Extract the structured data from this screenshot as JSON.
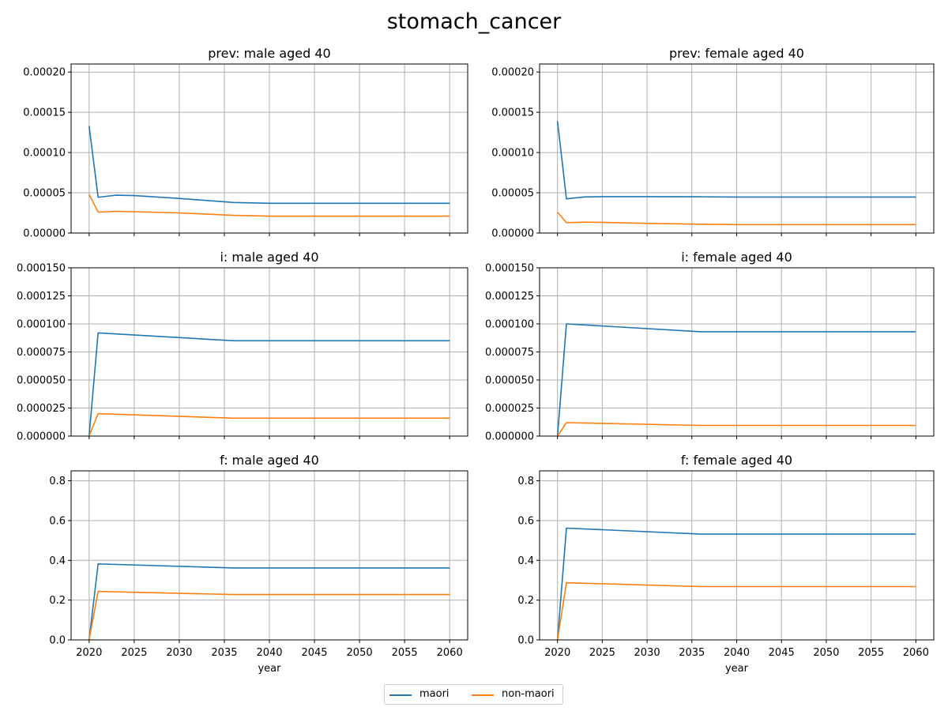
{
  "figure": {
    "title": "stomach_cancer"
  },
  "legend": {
    "items": [
      {
        "label": "maori",
        "color": "#1f77b4"
      },
      {
        "label": "non-maori",
        "color": "#ff7f0e"
      }
    ]
  },
  "chart_data": [
    {
      "type": "line",
      "title": "prev: male aged 40",
      "xlabel": "",
      "ylabel": "",
      "xlim": [
        2018,
        2062
      ],
      "ylim": [
        0,
        0.00021
      ],
      "yticks": [
        "0.00000",
        "0.00005",
        "0.00010",
        "0.00015",
        "0.00020"
      ],
      "ytick_values": [
        0,
        5e-05,
        0.0001,
        0.00015,
        0.0002
      ],
      "xticks": [
        2020,
        2025,
        2030,
        2035,
        2040,
        2045,
        2050,
        2055,
        2060
      ],
      "show_xticklabels": false,
      "grid": true,
      "series": [
        {
          "name": "maori",
          "color": "#1f77b4",
          "x": [
            2020,
            2021,
            2023,
            2025,
            2030,
            2036,
            2040,
            2060
          ],
          "y": [
            0.000133,
            4.45e-05,
            4.7e-05,
            4.65e-05,
            4.3e-05,
            3.8e-05,
            3.7e-05,
            3.7e-05
          ]
        },
        {
          "name": "non-maori",
          "color": "#ff7f0e",
          "x": [
            2020,
            2021,
            2023,
            2025,
            2030,
            2036,
            2040,
            2060
          ],
          "y": [
            4.8e-05,
            2.6e-05,
            2.7e-05,
            2.65e-05,
            2.5e-05,
            2.2e-05,
            2.1e-05,
            2.1e-05
          ]
        }
      ]
    },
    {
      "type": "line",
      "title": "prev: female aged 40",
      "xlabel": "",
      "ylabel": "",
      "xlim": [
        2018,
        2062
      ],
      "ylim": [
        0,
        0.00021
      ],
      "yticks": [
        "0.00000",
        "0.00005",
        "0.00010",
        "0.00015",
        "0.00020"
      ],
      "ytick_values": [
        0,
        5e-05,
        0.0001,
        0.00015,
        0.0002
      ],
      "xticks": [
        2020,
        2025,
        2030,
        2035,
        2040,
        2045,
        2050,
        2055,
        2060
      ],
      "show_xticklabels": false,
      "grid": true,
      "series": [
        {
          "name": "maori",
          "color": "#1f77b4",
          "x": [
            2020,
            2021,
            2023,
            2025,
            2030,
            2036,
            2040,
            2060
          ],
          "y": [
            0.000139,
            4.25e-05,
            4.48e-05,
            4.52e-05,
            4.52e-05,
            4.5e-05,
            4.47e-05,
            4.47e-05
          ]
        },
        {
          "name": "non-maori",
          "color": "#ff7f0e",
          "x": [
            2020,
            2021,
            2023,
            2025,
            2030,
            2036,
            2040,
            2060
          ],
          "y": [
            2.6e-05,
            1.3e-05,
            1.35e-05,
            1.33e-05,
            1.2e-05,
            1.1e-05,
            1.05e-05,
            1.05e-05
          ]
        }
      ]
    },
    {
      "type": "line",
      "title": "i: male aged 40",
      "xlabel": "",
      "ylabel": "",
      "xlim": [
        2018,
        2062
      ],
      "ylim": [
        0,
        0.00015
      ],
      "yticks": [
        "0.000000",
        "0.000025",
        "0.000050",
        "0.000075",
        "0.000100",
        "0.000125",
        "0.000150"
      ],
      "ytick_values": [
        0,
        2.5e-05,
        5e-05,
        7.5e-05,
        0.0001,
        0.000125,
        0.00015
      ],
      "xticks": [
        2020,
        2025,
        2030,
        2035,
        2040,
        2045,
        2050,
        2055,
        2060
      ],
      "show_xticklabels": false,
      "grid": true,
      "series": [
        {
          "name": "maori",
          "color": "#1f77b4",
          "x": [
            2020,
            2021,
            2036,
            2060
          ],
          "y": [
            0,
            9.2e-05,
            8.5e-05,
            8.5e-05
          ]
        },
        {
          "name": "non-maori",
          "color": "#ff7f0e",
          "x": [
            2020,
            2021,
            2036,
            2060
          ],
          "y": [
            0,
            2e-05,
            1.6e-05,
            1.6e-05
          ]
        }
      ]
    },
    {
      "type": "line",
      "title": "i: female aged 40",
      "xlabel": "",
      "ylabel": "",
      "xlim": [
        2018,
        2062
      ],
      "ylim": [
        0,
        0.00015
      ],
      "yticks": [
        "0.000000",
        "0.000025",
        "0.000050",
        "0.000075",
        "0.000100",
        "0.000125",
        "0.000150"
      ],
      "ytick_values": [
        0,
        2.5e-05,
        5e-05,
        7.5e-05,
        0.0001,
        0.000125,
        0.00015
      ],
      "xticks": [
        2020,
        2025,
        2030,
        2035,
        2040,
        2045,
        2050,
        2055,
        2060
      ],
      "show_xticklabels": false,
      "grid": true,
      "series": [
        {
          "name": "maori",
          "color": "#1f77b4",
          "x": [
            2020,
            2021,
            2036,
            2060
          ],
          "y": [
            0,
            0.0001,
            9.3e-05,
            9.3e-05
          ]
        },
        {
          "name": "non-maori",
          "color": "#ff7f0e",
          "x": [
            2020,
            2021,
            2036,
            2060
          ],
          "y": [
            0,
            1.2e-05,
            9.5e-06,
            9.5e-06
          ]
        }
      ]
    },
    {
      "type": "line",
      "title": "f: male aged 40",
      "xlabel": "year",
      "ylabel": "",
      "xlim": [
        2018,
        2062
      ],
      "ylim": [
        0,
        0.85
      ],
      "yticks": [
        "0.0",
        "0.2",
        "0.4",
        "0.6",
        "0.8"
      ],
      "ytick_values": [
        0,
        0.2,
        0.4,
        0.6,
        0.8
      ],
      "xticks": [
        2020,
        2025,
        2030,
        2035,
        2040,
        2045,
        2050,
        2055,
        2060
      ],
      "show_xticklabels": true,
      "grid": true,
      "series": [
        {
          "name": "maori",
          "color": "#1f77b4",
          "x": [
            2020,
            2021,
            2036,
            2060
          ],
          "y": [
            0,
            0.382,
            0.362,
            0.362
          ]
        },
        {
          "name": "non-maori",
          "color": "#ff7f0e",
          "x": [
            2020,
            2021,
            2036,
            2060
          ],
          "y": [
            0,
            0.244,
            0.228,
            0.228
          ]
        }
      ]
    },
    {
      "type": "line",
      "title": "f: female aged 40",
      "xlabel": "year",
      "ylabel": "",
      "xlim": [
        2018,
        2062
      ],
      "ylim": [
        0,
        0.85
      ],
      "yticks": [
        "0.0",
        "0.2",
        "0.4",
        "0.6",
        "0.8"
      ],
      "ytick_values": [
        0,
        0.2,
        0.4,
        0.6,
        0.8
      ],
      "xticks": [
        2020,
        2025,
        2030,
        2035,
        2040,
        2045,
        2050,
        2055,
        2060
      ],
      "show_xticklabels": true,
      "grid": true,
      "series": [
        {
          "name": "maori",
          "color": "#1f77b4",
          "x": [
            2020,
            2021,
            2036,
            2060
          ],
          "y": [
            0,
            0.562,
            0.532,
            0.532
          ]
        },
        {
          "name": "non-maori",
          "color": "#ff7f0e",
          "x": [
            2020,
            2021,
            2036,
            2060
          ],
          "y": [
            0,
            0.287,
            0.268,
            0.268
          ]
        }
      ]
    }
  ]
}
